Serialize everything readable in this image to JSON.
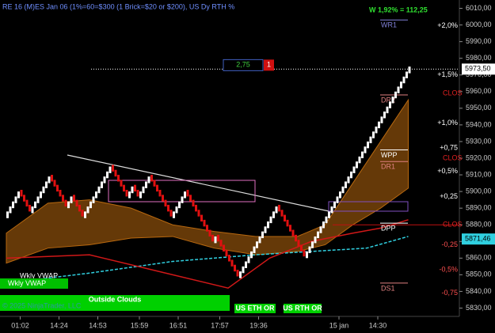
{
  "chart_data": {
    "type": "renko",
    "title": "RE 16 (M)ES Jan 06 (1%=60=$300  (1 Brick=$20 or $200), US Dy RTH %",
    "stat_label": "W 1,92% = 112,25",
    "brick_size": 4,
    "up_color": "#ffffff",
    "down_color": "#e01010",
    "values": [
      5888,
      5891,
      5894,
      5897,
      5900,
      5897,
      5894,
      5891,
      5888,
      5891,
      5894,
      5897,
      5900,
      5903,
      5906,
      5909,
      5906,
      5903,
      5900,
      5897,
      5894,
      5891,
      5894,
      5897,
      5894,
      5891,
      5888,
      5885,
      5888,
      5891,
      5894,
      5897,
      5900,
      5903,
      5906,
      5909,
      5912,
      5915,
      5912,
      5909,
      5906,
      5903,
      5900,
      5897,
      5900,
      5903,
      5900,
      5897,
      5900,
      5903,
      5906,
      5909,
      5906,
      5903,
      5900,
      5897,
      5894,
      5891,
      5888,
      5885,
      5888,
      5891,
      5894,
      5897,
      5900,
      5897,
      5894,
      5891,
      5888,
      5885,
      5882,
      5879,
      5876,
      5873,
      5870,
      5873,
      5870,
      5867,
      5864,
      5861,
      5858,
      5855,
      5852,
      5849,
      5852,
      5855,
      5858,
      5861,
      5864,
      5867,
      5870,
      5873,
      5876,
      5879,
      5882,
      5885,
      5888,
      5891,
      5888,
      5885,
      5882,
      5879,
      5876,
      5873,
      5870,
      5867,
      5864,
      5861,
      5864,
      5867,
      5870,
      5873,
      5876,
      5879,
      5882,
      5885,
      5888,
      5891,
      5894,
      5897,
      5900,
      5903,
      5906,
      5909,
      5912,
      5915,
      5918,
      5921,
      5924,
      5927,
      5930,
      5933,
      5936,
      5939,
      5942,
      5945,
      5948,
      5951,
      5954,
      5957,
      5960,
      5963,
      5966,
      5969,
      5972,
      5975
    ],
    "x_labels": [
      {
        "index": 5,
        "label": "01:02"
      },
      {
        "index": 19,
        "label": "14:24"
      },
      {
        "index": 33,
        "label": "14:53"
      },
      {
        "index": 48,
        "label": "15:59"
      },
      {
        "index": 62,
        "label": "16:51"
      },
      {
        "index": 77,
        "label": "17:57"
      },
      {
        "index": 91,
        "label": "19:36"
      },
      {
        "index": 120,
        "label": "15 jan"
      },
      {
        "index": 134,
        "label": "14:30"
      }
    ],
    "ylim": [
      5825,
      6015
    ],
    "yticks": [
      {
        "value": 5830,
        "label": "5830,00"
      },
      {
        "value": 5840,
        "label": "5840,00"
      },
      {
        "value": 5850,
        "label": "5850,00"
      },
      {
        "value": 5860,
        "label": "5860,00"
      },
      {
        "value": 5870,
        "label": "5870,00"
      },
      {
        "value": 5880,
        "label": "5880,00"
      },
      {
        "value": 5890,
        "label": "5890,00"
      },
      {
        "value": 5900,
        "label": "5900,00"
      },
      {
        "value": 5910,
        "label": "5910,00"
      },
      {
        "value": 5920,
        "label": "5920,00"
      },
      {
        "value": 5930,
        "label": "5930,00"
      },
      {
        "value": 5940,
        "label": "5940,00"
      },
      {
        "value": 5950,
        "label": "5950,00"
      },
      {
        "value": 5960,
        "label": "5960,00"
      },
      {
        "value": 5970,
        "label": "5970,00"
      },
      {
        "value": 5980,
        "label": "5980,00"
      },
      {
        "value": 5990,
        "label": "5990,00"
      },
      {
        "value": 6000,
        "label": "6000,00"
      },
      {
        "value": 6010,
        "label": "6010,00"
      }
    ],
    "cloud": {
      "color": "#b8680f",
      "x": [
        0,
        15,
        30,
        45,
        60,
        75,
        90,
        105,
        115,
        125,
        135,
        145
      ],
      "upper": [
        5875,
        5893,
        5895,
        5890,
        5880,
        5876,
        5873,
        5873,
        5880,
        5905,
        5930,
        5955
      ],
      "lower": [
        5857,
        5866,
        5868,
        5872,
        5873,
        5866,
        5862,
        5864,
        5868,
        5880,
        5890,
        5902
      ]
    },
    "lines": [
      {
        "name": "Wkly VWAP",
        "color": "#30d0e0",
        "dashed": true,
        "x": [
          0,
          30,
          60,
          90,
          110,
          130,
          145
        ],
        "values": [
          5845,
          5851,
          5858,
          5862,
          5864,
          5866,
          5873
        ]
      },
      {
        "color": "#d01818",
        "dashed": false,
        "x": [
          0,
          30,
          60,
          80,
          95,
          110,
          125,
          135,
          145
        ],
        "values": [
          5860,
          5862,
          5850,
          5842,
          5860,
          5870,
          5875,
          5878,
          5883
        ]
      }
    ],
    "levels": [
      {
        "label": "WR1",
        "value": 6003,
        "color": "#8080d8"
      },
      {
        "label": "DR2",
        "value": 5958,
        "color": "#e08080"
      },
      {
        "label": "WPP",
        "value": 5925,
        "color": "#ffffff"
      },
      {
        "label": "DR1",
        "value": 5918,
        "color": "#e08080"
      },
      {
        "label": "DPP",
        "value": 5881,
        "color": "#ffffff"
      },
      {
        "label": "DS1",
        "value": 5845,
        "color": "#e08080"
      }
    ],
    "close_labels": [
      {
        "label": "CLOS",
        "value": 5959
      },
      {
        "label": "CLOS",
        "value": 5920
      },
      {
        "label": "CLOS",
        "value": 5880
      }
    ],
    "pct_labels": [
      {
        "label": "+2,0%",
        "value": 5999.5,
        "color": "#ffffff"
      },
      {
        "label": "+1,5%",
        "value": 5970,
        "color": "#ffffff"
      },
      {
        "label": "+1,0%",
        "value": 5941,
        "color": "#ffffff"
      },
      {
        "label": "+0,75",
        "value": 5926,
        "color": "#ffffff"
      },
      {
        "label": "+0,5%",
        "value": 5912,
        "color": "#ffffff"
      },
      {
        "label": "+0,25",
        "value": 5897,
        "color": "#ffffff"
      },
      {
        "label": "-0,25",
        "value": 5868,
        "color": "#ff5050"
      },
      {
        "label": "-0,5%",
        "value": 5853,
        "color": "#ff5050"
      },
      {
        "label": "-0,75",
        "value": 5839,
        "color": "#ff5050"
      }
    ],
    "price_badges": [
      {
        "label": "5973,50",
        "value": 5973.5,
        "color": "#ffffff"
      },
      {
        "label": "5871,46",
        "value": 5871.46,
        "color": "#30d0e0"
      }
    ],
    "order_box": {
      "qty": "2,75",
      "count": "1"
    },
    "buttons": [
      "Wkly VWAP",
      "Outside Clouds",
      "US ETH OR",
      "US RTH OR"
    ],
    "copyright": "© 2025 NinjaTrader, LLC"
  }
}
